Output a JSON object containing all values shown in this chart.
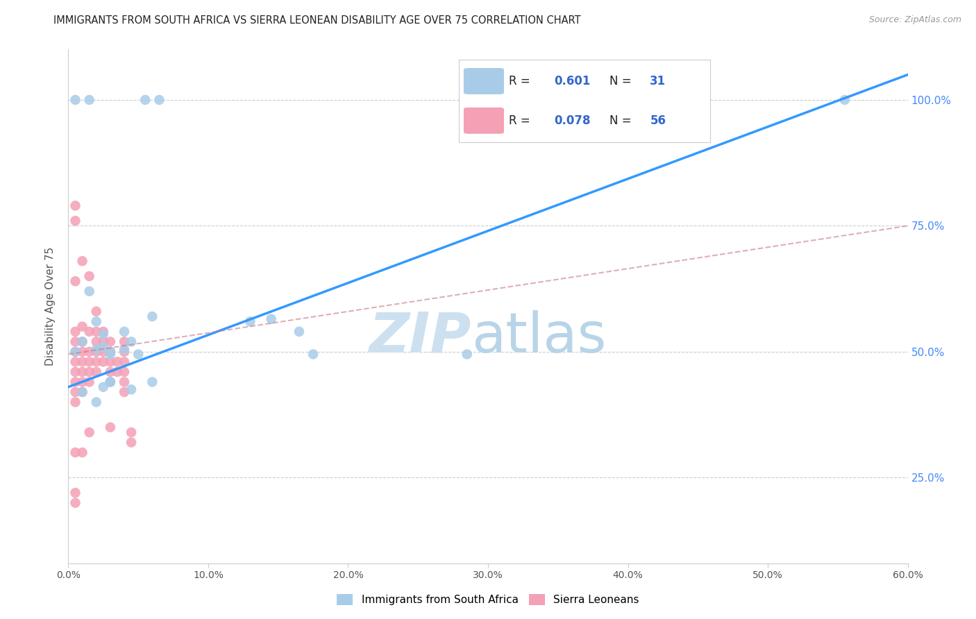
{
  "title": "IMMIGRANTS FROM SOUTH AFRICA VS SIERRA LEONEAN DISABILITY AGE OVER 75 CORRELATION CHART",
  "source": "Source: ZipAtlas.com",
  "ylabel": "Disability Age Over 75",
  "xlim": [
    0.0,
    0.6
  ],
  "ylim": [
    0.08,
    1.1
  ],
  "xtick_labels": [
    "0.0%",
    "10.0%",
    "20.0%",
    "30.0%",
    "40.0%",
    "50.0%",
    "60.0%"
  ],
  "xtick_values": [
    0.0,
    0.1,
    0.2,
    0.3,
    0.4,
    0.5,
    0.6
  ],
  "ytick_labels": [
    "25.0%",
    "50.0%",
    "75.0%",
    "100.0%"
  ],
  "ytick_values": [
    0.25,
    0.5,
    0.75,
    1.0
  ],
  "blue_R": "0.601",
  "blue_N": "31",
  "pink_R": "0.078",
  "pink_N": "56",
  "blue_color": "#a8cce8",
  "blue_line_color": "#3399ff",
  "pink_color": "#f4a0b5",
  "pink_line_color": "#cc7788",
  "blue_scatter_x": [
    0.015,
    0.005,
    0.055,
    0.065,
    0.005,
    0.01,
    0.02,
    0.025,
    0.03,
    0.04,
    0.015,
    0.02,
    0.025,
    0.03,
    0.04,
    0.045,
    0.05,
    0.06,
    0.01,
    0.02,
    0.025,
    0.03,
    0.145,
    0.165,
    0.13,
    0.175,
    0.285,
    0.03,
    0.045,
    0.06,
    0.555
  ],
  "blue_scatter_y": [
    1.0,
    1.0,
    1.0,
    1.0,
    0.5,
    0.52,
    0.505,
    0.51,
    0.495,
    0.54,
    0.62,
    0.56,
    0.535,
    0.5,
    0.505,
    0.52,
    0.495,
    0.57,
    0.42,
    0.4,
    0.43,
    0.44,
    0.565,
    0.54,
    0.56,
    0.495,
    0.495,
    0.44,
    0.425,
    0.44,
    1.0
  ],
  "pink_scatter_x": [
    0.005,
    0.005,
    0.005,
    0.005,
    0.005,
    0.005,
    0.005,
    0.005,
    0.005,
    0.005,
    0.005,
    0.005,
    0.01,
    0.01,
    0.01,
    0.01,
    0.01,
    0.01,
    0.01,
    0.01,
    0.015,
    0.015,
    0.015,
    0.015,
    0.015,
    0.015,
    0.02,
    0.02,
    0.02,
    0.02,
    0.02,
    0.02,
    0.025,
    0.025,
    0.025,
    0.025,
    0.03,
    0.03,
    0.03,
    0.03,
    0.03,
    0.035,
    0.035,
    0.04,
    0.04,
    0.04,
    0.04,
    0.04,
    0.04,
    0.045,
    0.045,
    0.005,
    0.005,
    0.01,
    0.015,
    0.03
  ],
  "pink_scatter_y": [
    0.79,
    0.76,
    0.64,
    0.54,
    0.52,
    0.5,
    0.48,
    0.46,
    0.44,
    0.42,
    0.4,
    0.22,
    0.68,
    0.55,
    0.52,
    0.5,
    0.48,
    0.46,
    0.44,
    0.42,
    0.65,
    0.54,
    0.5,
    0.48,
    0.46,
    0.44,
    0.58,
    0.54,
    0.52,
    0.5,
    0.48,
    0.46,
    0.54,
    0.52,
    0.5,
    0.48,
    0.52,
    0.5,
    0.48,
    0.46,
    0.44,
    0.48,
    0.46,
    0.52,
    0.5,
    0.48,
    0.46,
    0.44,
    0.42,
    0.34,
    0.32,
    0.3,
    0.2,
    0.3,
    0.34,
    0.35
  ],
  "blue_line_x": [
    0.0,
    0.6
  ],
  "blue_line_y": [
    0.43,
    1.05
  ],
  "pink_line_x": [
    0.0,
    0.6
  ],
  "pink_line_y": [
    0.495,
    0.75
  ]
}
